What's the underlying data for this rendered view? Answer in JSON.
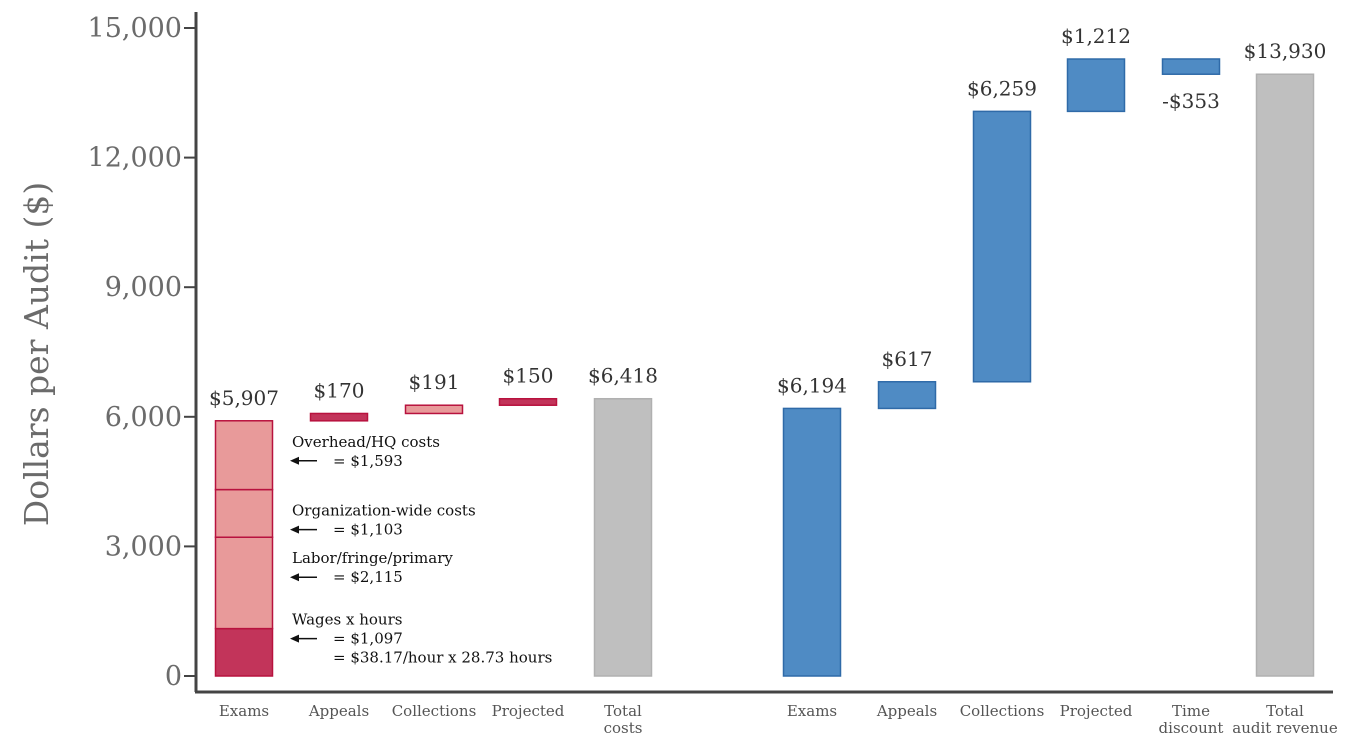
{
  "chart_data": {
    "type": "waterfall",
    "ylabel": "Dollars per Audit ($)",
    "ylim": [
      0,
      15000
    ],
    "yticks": [
      0,
      3000,
      6000,
      9000,
      12000,
      15000
    ],
    "ytick_labels": [
      "0",
      "3,000",
      "6,000",
      "9,000",
      "12,000",
      "15,000"
    ],
    "colors": {
      "cost_segment": "#e89a9a",
      "cost_dark": "#c2345a",
      "cost_outline": "#b8123e",
      "total": "#bfbfbf",
      "revenue": "#4f8bc4",
      "revenue_outline": "#2f6aa8",
      "axis": "#444444"
    },
    "bars": [
      {
        "category": "Exams",
        "start": 0,
        "end": 5907,
        "label": "$5,907",
        "kind": "cost_stacked"
      },
      {
        "category": "Appeals",
        "start": 5907,
        "end": 6077,
        "label": "$170",
        "kind": "cost_dark"
      },
      {
        "category": "Collections",
        "start": 6077,
        "end": 6268,
        "label": "$191",
        "kind": "cost_light"
      },
      {
        "category": "Projected",
        "start": 6268,
        "end": 6418,
        "label": "$150",
        "kind": "cost_dark"
      },
      {
        "category": "Total\ncosts",
        "start": 0,
        "end": 6418,
        "label": "$6,418",
        "kind": "total"
      },
      {
        "category": "Exams",
        "start": 0,
        "end": 6194,
        "label": "$6,194",
        "kind": "revenue"
      },
      {
        "category": "Appeals",
        "start": 6194,
        "end": 6811,
        "label": "$617",
        "kind": "revenue"
      },
      {
        "category": "Collections",
        "start": 6811,
        "end": 13070,
        "label": "$6,259",
        "kind": "revenue"
      },
      {
        "category": "Projected",
        "start": 13070,
        "end": 14282,
        "label": "$1,212",
        "kind": "revenue"
      },
      {
        "category": "Time\ndiscount",
        "start": 13930,
        "end": 14283,
        "label": "-$353",
        "kind": "revenue_negative"
      },
      {
        "category": "Total\naudit revenue",
        "start": 0,
        "end": 13930,
        "label": "$13,930",
        "kind": "total"
      }
    ],
    "exam_cost_breakdown": [
      {
        "name": "Wages x hours",
        "value": 1097,
        "lines": [
          "Wages x hours",
          "= $1,097",
          "= $38.17/hour x 28.73 hours"
        ],
        "shade": "dark"
      },
      {
        "name": "Labor/fringe/primary",
        "value": 2115,
        "lines": [
          "Labor/fringe/primary",
          "= $2,115"
        ],
        "shade": "light"
      },
      {
        "name": "Organization-wide costs",
        "value": 1103,
        "lines": [
          "Organization-wide costs",
          "= $1,103"
        ],
        "shade": "light"
      },
      {
        "name": "Overhead/HQ costs",
        "value": 1593,
        "lines": [
          "Overhead/HQ costs",
          "= $1,593"
        ],
        "shade": "light"
      }
    ]
  }
}
